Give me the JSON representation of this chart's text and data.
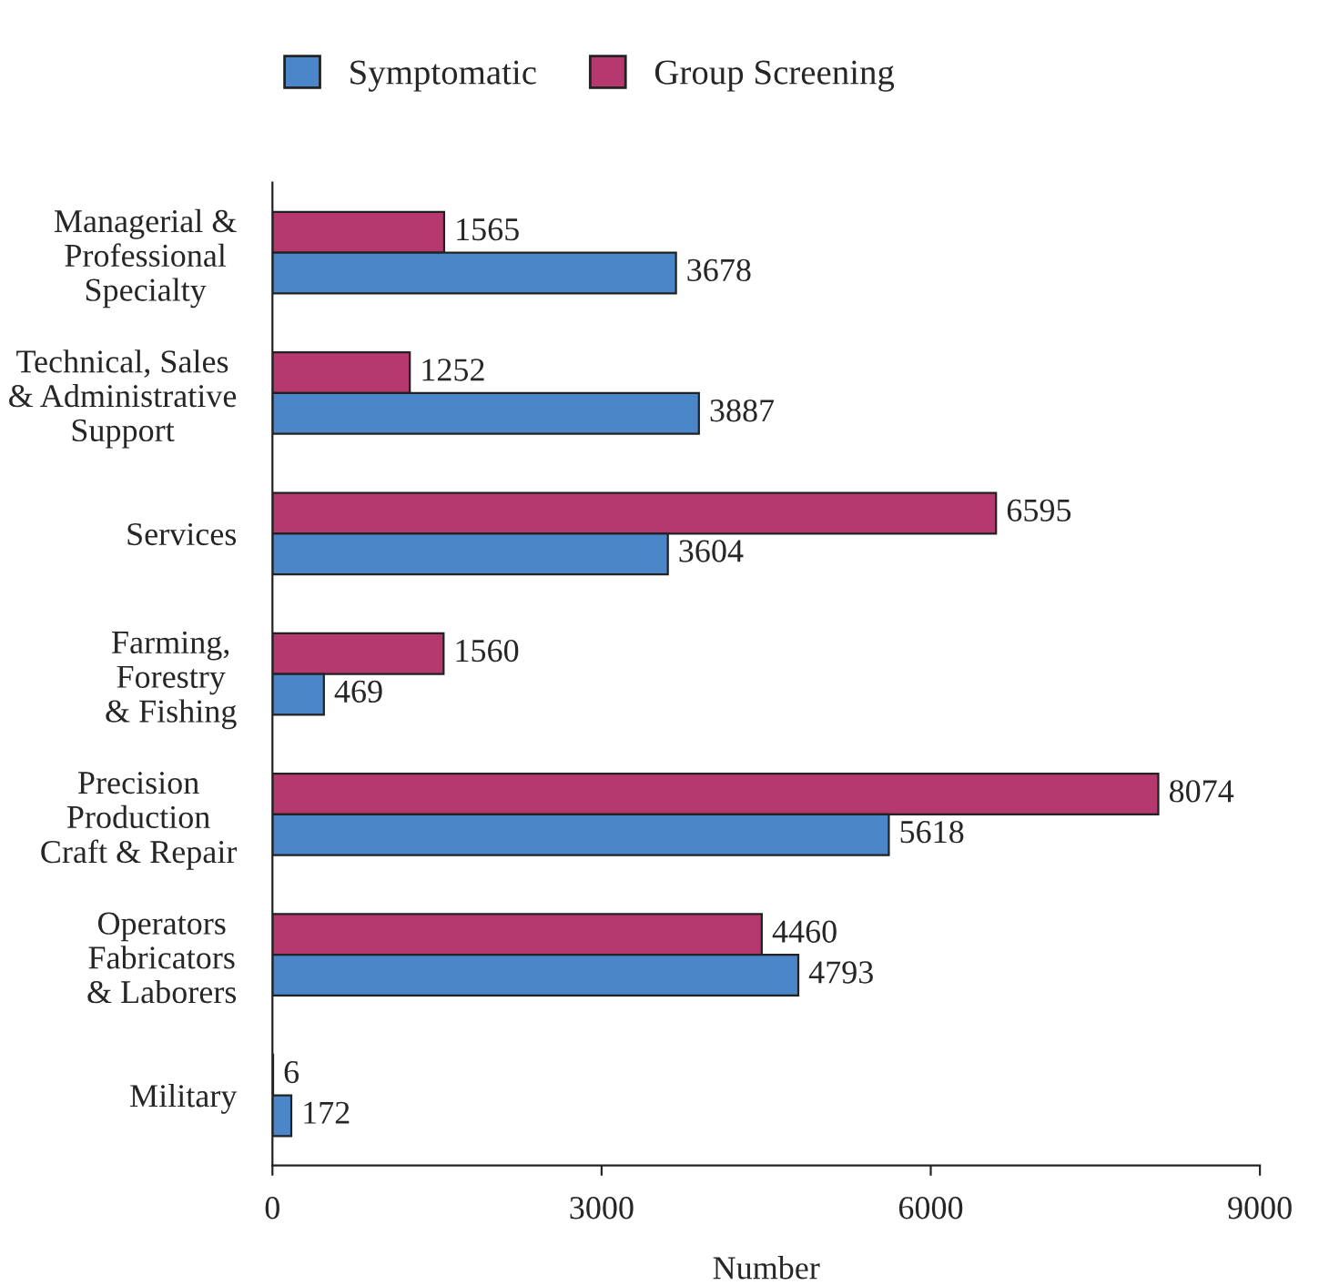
{
  "chart_data": {
    "type": "bar",
    "orientation": "horizontal",
    "xlabel": "Number",
    "categories": [
      "Managerial &\nProfessional\nSpecialty",
      "Technical, Sales\n& Administrative\nSupport",
      "Services",
      "Farming,\nForestry\n& Fishing",
      "Precision\nProduction\nCraft & Repair",
      "Operators\nFabricators\n& Laborers",
      "Military"
    ],
    "series": [
      {
        "name": "Group Screening",
        "color": "#b5386e",
        "values": [
          1565,
          1252,
          6595,
          1560,
          8074,
          4460,
          6
        ]
      },
      {
        "name": "Symptomatic",
        "color": "#4a86c8",
        "values": [
          3678,
          3887,
          3604,
          469,
          5618,
          4793,
          172
        ]
      }
    ],
    "xlim": [
      0,
      9000
    ],
    "xticks": [
      0,
      3000,
      6000,
      9000
    ],
    "grid": false,
    "legend": "top",
    "data_labels": true
  }
}
